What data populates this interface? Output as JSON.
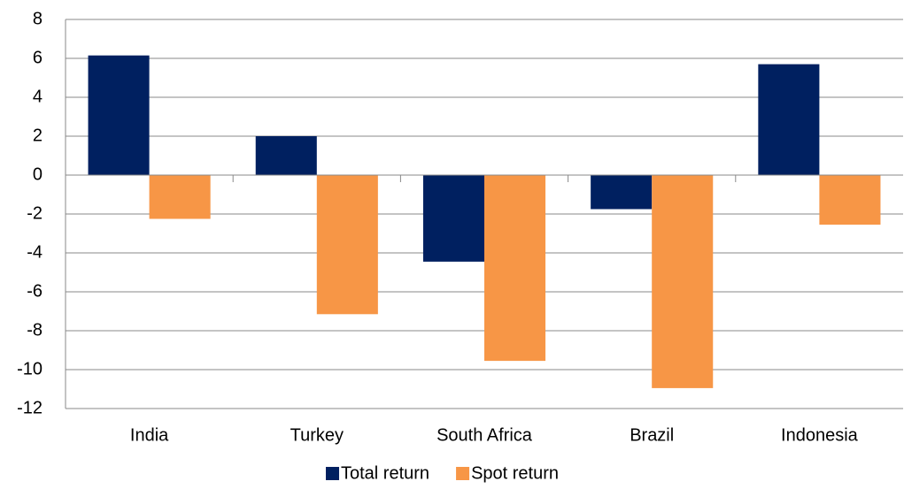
{
  "chart_data": {
    "type": "bar",
    "categories": [
      "India",
      "Turkey",
      "South Africa",
      "Brazil",
      "Indonesia"
    ],
    "series": [
      {
        "name": "Total return",
        "color": "#002060",
        "values": [
          6.15,
          2.0,
          -4.45,
          -1.75,
          5.7
        ]
      },
      {
        "name": "Spot return",
        "color": "#f79646",
        "values": [
          -2.25,
          -7.15,
          -9.55,
          -10.95,
          -2.55
        ]
      }
    ],
    "ylim": [
      -12,
      8
    ],
    "yticks": [
      -12,
      -10,
      -8,
      -6,
      -4,
      -2,
      0,
      2,
      4,
      6,
      8
    ],
    "grid": true,
    "legend": "bottom"
  }
}
